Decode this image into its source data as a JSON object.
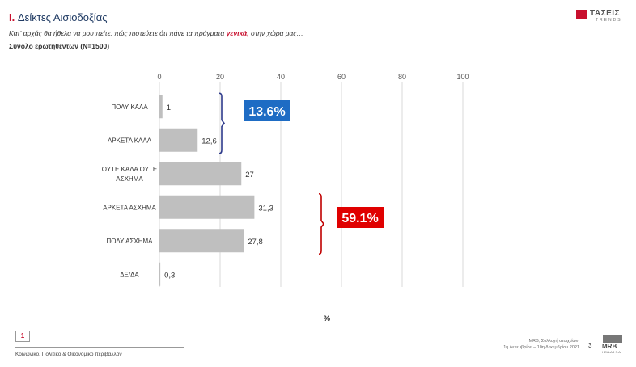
{
  "header": {
    "title_num": "I.",
    "title_text": "Δείκτες Αισιοδοξίας",
    "subtitle_pre": "Κατ' αρχάς θα ήθελα να μου πείτε, πώς πιστεύετε ότι πάνε τα πράγματα ",
    "subtitle_highlight": "γενικά,",
    "subtitle_post": " στην χώρα μας…",
    "sample": "Σύνολο ερωτηθέντων (Ν=1500)"
  },
  "logo_top": {
    "name": "ΤΑΣΕΙΣ",
    "sub": "TRENDS"
  },
  "chart_data": {
    "type": "bar",
    "orientation": "horizontal",
    "categories": [
      "ΠΟΛΥ ΚΑΛΑ",
      "ΑΡΚΕΤΑ ΚΑΛΑ",
      "ΟΥΤΕ ΚΑΛΑ ΟΥΤΕ ΑΣΧΗΜΑ",
      "ΑΡΚΕΤΑ ΑΣΧΗΜΑ",
      "ΠΟΛΥ ΑΣΧΗΜΑ",
      "ΔΞ/ΔΑ"
    ],
    "values": [
      1,
      12.6,
      27,
      31.3,
      27.8,
      0.3
    ],
    "value_labels": [
      "1",
      "12,6",
      "27",
      "31,3",
      "27,8",
      "0,3"
    ],
    "xticks": [
      0,
      20,
      40,
      60,
      80,
      100
    ],
    "xlim": [
      0,
      100
    ],
    "xlabel": "%",
    "bar_color": "#bfbfbf",
    "grid": true,
    "annotations": [
      {
        "label": "13.6%",
        "color": "#1e6cc4",
        "bracket_color": "#2e3a8c",
        "from": 0,
        "to": 1
      },
      {
        "label": "59.1%",
        "color": "#e00000",
        "bracket_color": "#c00000",
        "from": 3,
        "to": 4
      }
    ]
  },
  "footer": {
    "box_num": "1",
    "text": "Κοινωνικό, Πολιτικό & Οικονομικό περιβάλλον",
    "source_line1": "MRB; Συλλογή στοιχείων:",
    "source_line2": "1η Δεκεμβρίου –  10η Δεκεμβρίου 2021",
    "page": "3"
  },
  "logo_bottom": {
    "name": "MRB",
    "sub": "HELLAS S.A."
  }
}
